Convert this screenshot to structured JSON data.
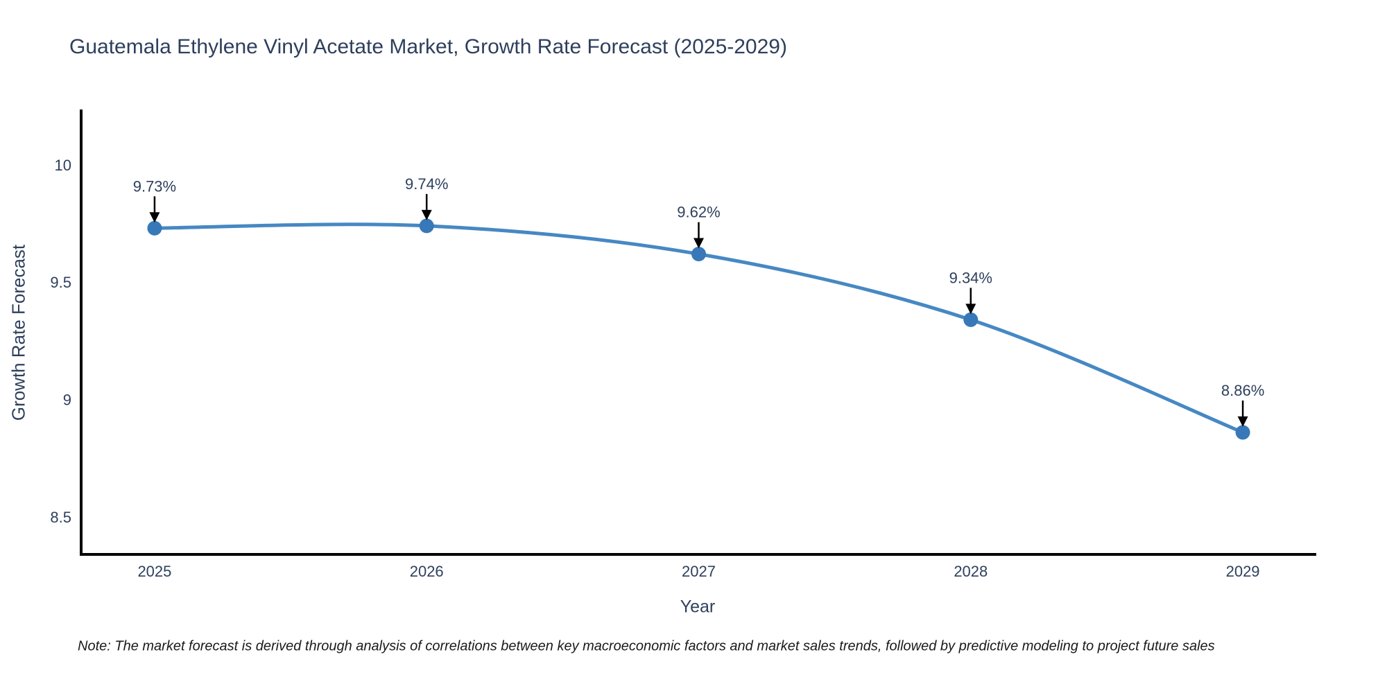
{
  "chart_data": {
    "type": "line",
    "title": "Guatemala Ethylene Vinyl Acetate Market, Growth Rate Forecast (2025-2029)",
    "xlabel": "Year",
    "ylabel": "Growth Rate Forecast",
    "note": "Note: The market forecast is derived through analysis of correlations between key macroeconomic factors and market sales trends, followed by predictive modeling to project future sales",
    "x": [
      2025,
      2026,
      2027,
      2028,
      2029
    ],
    "values": [
      9.73,
      9.74,
      9.62,
      9.34,
      8.86
    ],
    "point_labels": [
      "9.73%",
      "9.74%",
      "9.62%",
      "9.34%",
      "8.86%"
    ],
    "x_tick_labels": [
      "2025",
      "2026",
      "2027",
      "2028",
      "2029"
    ],
    "y_ticks": [
      10,
      9.5,
      9,
      8.5
    ],
    "y_tick_labels": [
      "10",
      "9.5",
      "9",
      "8.5"
    ],
    "xlim": [
      2024.73,
      2029.27
    ],
    "ylim": [
      8.34,
      10.23
    ],
    "line_shape": "spline",
    "grid": false,
    "legend": "none",
    "colors": {
      "line": "#4688c3",
      "marker": "#3878b8",
      "axis_line": "#000000",
      "tick_text": "#2e3f5c",
      "annotation_text": "#2e3f5c",
      "annotation_arrow": "#000000"
    }
  }
}
